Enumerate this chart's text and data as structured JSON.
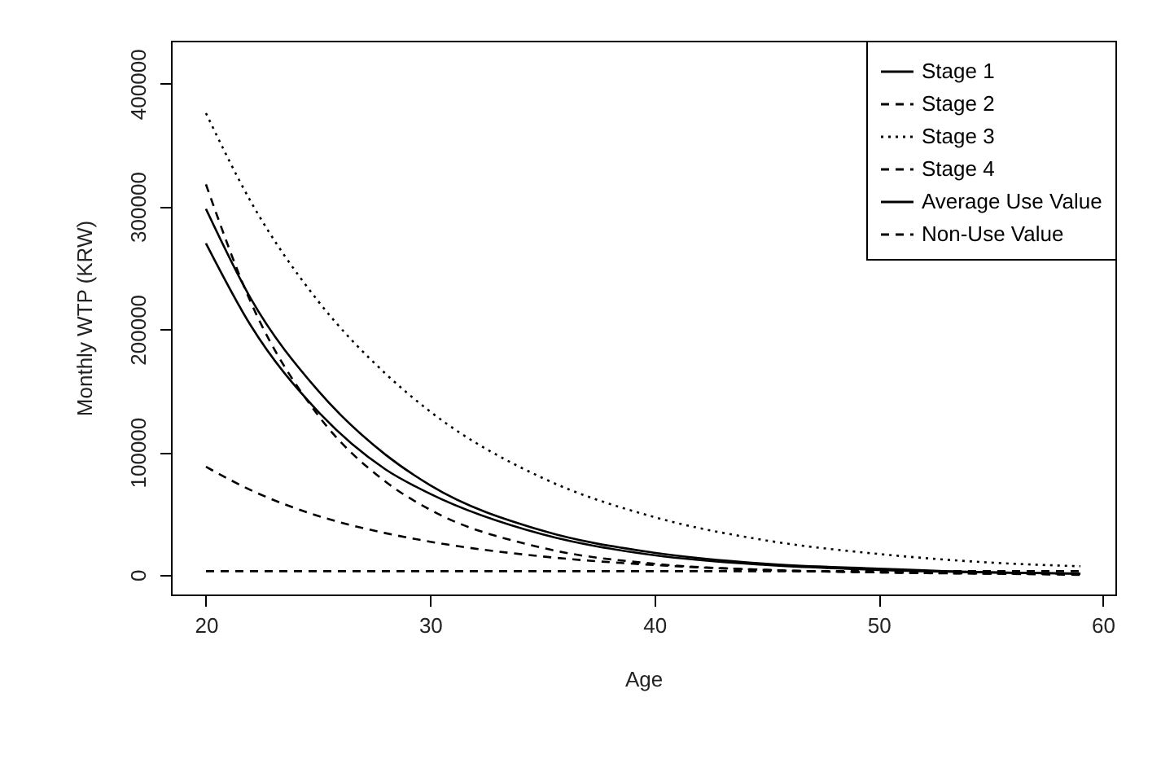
{
  "chart_data": {
    "type": "line",
    "xlabel": "Age",
    "ylabel": "Monthly WTP (KRW)",
    "x": [
      20,
      22,
      25,
      28,
      30,
      35,
      40,
      45,
      50,
      55,
      59
    ],
    "xlim": [
      18.44,
      60.56
    ],
    "ylim": [
      -16000,
      435000
    ],
    "xticks": [
      20,
      30,
      40,
      50,
      60
    ],
    "yticks": [
      0,
      100000,
      200000,
      300000,
      400000
    ],
    "grid": false,
    "legend": "top right",
    "marker": "none",
    "series": [
      {
        "name": "Stage 1",
        "color": "#000000",
        "line_style": "solid",
        "values": [
          298000,
          225000,
          150000,
          98000,
          73000,
          36000,
          18000,
          9000,
          5000,
          2000,
          1000
        ]
      },
      {
        "name": "Stage 2",
        "color": "#000000",
        "line_style": "dashed",
        "values": [
          318000,
          222000,
          130000,
          76000,
          53000,
          22000,
          9000,
          4000,
          2000,
          1000,
          0
        ]
      },
      {
        "name": "Stage 3",
        "color": "#000000",
        "line_style": "dotted",
        "values": [
          376000,
          304000,
          223000,
          164000,
          133000,
          79000,
          47000,
          28000,
          17000,
          10000,
          7000
        ]
      },
      {
        "name": "Stage 4",
        "color": "#000000",
        "line_style": "dashed",
        "values": [
          88000,
          69000,
          48000,
          34000,
          27000,
          15000,
          8000,
          4000,
          2000,
          1000,
          1000
        ]
      },
      {
        "name": "Average Use Value",
        "color": "#000000",
        "line_style": "solid",
        "values": [
          270000,
          203000,
          133000,
          86000,
          66000,
          33000,
          16000,
          8000,
          4000,
          2000,
          1000
        ]
      },
      {
        "name": "Non-Use Value",
        "color": "#000000",
        "line_style": "dashed",
        "values": [
          3000,
          3000,
          3000,
          3000,
          3000,
          3000,
          3000,
          3000,
          3000,
          3000,
          3000
        ]
      }
    ]
  }
}
